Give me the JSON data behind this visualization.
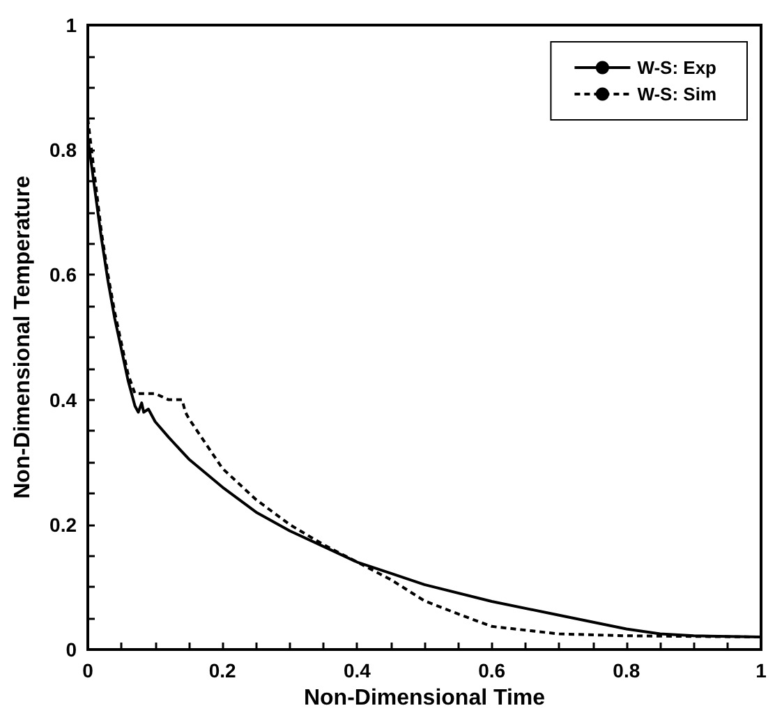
{
  "chart_data": {
    "type": "line",
    "xlabel": "Non-Dimensional Time",
    "ylabel": "Non-Dimensional Temperature",
    "xlim": [
      0,
      1
    ],
    "ylim": [
      0,
      1
    ],
    "xticks": [
      0,
      {
        "value": 0.05,
        "label": null
      },
      {
        "value": 0.1,
        "label": null
      },
      {
        "value": 0.15,
        "label": null
      },
      0.2,
      {
        "value": 0.25,
        "label": null
      },
      {
        "value": 0.3,
        "label": null
      },
      {
        "value": 0.35,
        "label": null
      },
      0.4,
      {
        "value": 0.45,
        "label": null
      },
      {
        "value": 0.5,
        "label": null
      },
      {
        "value": 0.55,
        "label": null
      },
      0.6,
      {
        "value": 0.65,
        "label": null
      },
      {
        "value": 0.7,
        "label": null
      },
      {
        "value": 0.75,
        "label": null
      },
      0.8,
      {
        "value": 0.85,
        "label": null
      },
      {
        "value": 0.9,
        "label": null
      },
      {
        "value": 0.95,
        "label": null
      },
      1
    ],
    "yticks": [
      0,
      {
        "value": 0.05,
        "label": null
      },
      {
        "value": 0.1,
        "label": null
      },
      {
        "value": 0.15,
        "label": null
      },
      0.2,
      {
        "value": 0.25,
        "label": null
      },
      {
        "value": 0.3,
        "label": null
      },
      {
        "value": 0.35,
        "label": null
      },
      0.4,
      {
        "value": 0.45,
        "label": null
      },
      {
        "value": 0.5,
        "label": null
      },
      {
        "value": 0.55,
        "label": null
      },
      0.6,
      {
        "value": 0.65,
        "label": null
      },
      {
        "value": 0.7,
        "label": null
      },
      {
        "value": 0.75,
        "label": null
      },
      0.8,
      {
        "value": 0.85,
        "label": null
      },
      {
        "value": 0.9,
        "label": null
      },
      {
        "value": 0.95,
        "label": null
      },
      1
    ],
    "legend": "top right",
    "grid": false,
    "marker": "none",
    "series": [
      {
        "name": "W-S: Exp",
        "color": "#000000",
        "line_style": "solid",
        "x": [
          0,
          0.01,
          0.02,
          0.03,
          0.04,
          0.05,
          0.06,
          0.07,
          0.075,
          0.08,
          0.083,
          0.09,
          0.1,
          0.12,
          0.15,
          0.2,
          0.25,
          0.3,
          0.35,
          0.4,
          0.45,
          0.5,
          0.6,
          0.7,
          0.8,
          0.85,
          0.9,
          1
        ],
        "values": [
          0.82,
          0.74,
          0.66,
          0.59,
          0.53,
          0.48,
          0.43,
          0.39,
          0.38,
          0.395,
          0.38,
          0.385,
          0.365,
          0.34,
          0.305,
          0.26,
          0.22,
          0.19,
          0.165,
          0.14,
          0.122,
          0.104,
          0.077,
          0.055,
          0.033,
          0.025,
          0.022,
          0.02
        ]
      },
      {
        "name": "W-S: Sim",
        "color": "#000000",
        "line_style": "dashed",
        "x": [
          0,
          0.01,
          0.02,
          0.03,
          0.04,
          0.05,
          0.06,
          0.07,
          0.1,
          0.11,
          0.12,
          0.14,
          0.145,
          0.15,
          0.2,
          0.25,
          0.3,
          0.35,
          0.4,
          0.45,
          0.5,
          0.55,
          0.6,
          0.7,
          0.8,
          1
        ],
        "values": [
          0.85,
          0.76,
          0.67,
          0.6,
          0.54,
          0.49,
          0.44,
          0.41,
          0.41,
          0.405,
          0.4,
          0.4,
          0.38,
          0.37,
          0.29,
          0.24,
          0.2,
          0.168,
          0.14,
          0.112,
          0.078,
          0.057,
          0.037,
          0.025,
          0.022,
          0.02
        ]
      }
    ]
  }
}
